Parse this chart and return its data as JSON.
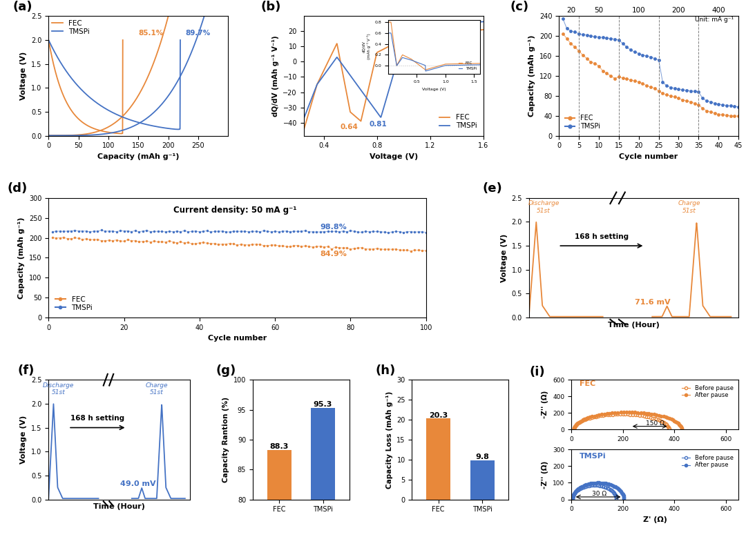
{
  "orange_color": "#E8883A",
  "blue_color": "#4472C4",
  "panel_a": {
    "xlim": [
      0,
      300
    ],
    "ylim": [
      0,
      2.5
    ],
    "xlabel": "Capacity (mAh g⁻¹)",
    "ylabel": "Voltage (V)",
    "xticks": [
      0,
      50,
      100,
      150,
      200,
      250
    ],
    "yticks": [
      0.0,
      0.5,
      1.0,
      1.5,
      2.0,
      2.5
    ]
  },
  "panel_b": {
    "xlabel": "Voltage (V)",
    "ylabel": "dQ/dV (mAh g⁻¹ V⁻¹)",
    "xlim": [
      0.25,
      1.6
    ],
    "xticks": [
      0.4,
      0.8,
      1.2,
      1.6
    ]
  },
  "panel_c": {
    "fec_cycles": [
      1,
      2,
      3,
      4,
      5,
      6,
      7,
      8,
      9,
      10,
      11,
      12,
      13,
      14,
      15,
      16,
      17,
      18,
      19,
      20,
      21,
      22,
      23,
      24,
      25,
      26,
      27,
      28,
      29,
      30,
      31,
      32,
      33,
      34,
      35,
      36,
      37,
      38,
      39,
      40,
      41,
      42,
      43,
      44,
      45
    ],
    "fec_cap": [
      205,
      195,
      185,
      178,
      170,
      162,
      155,
      148,
      145,
      140,
      130,
      125,
      120,
      115,
      118,
      116,
      114,
      112,
      110,
      108,
      105,
      100,
      98,
      95,
      90,
      85,
      82,
      80,
      78,
      75,
      72,
      70,
      68,
      65,
      62,
      55,
      50,
      48,
      45,
      43,
      42,
      41,
      40,
      40,
      39
    ],
    "tmspi_cycles": [
      1,
      2,
      3,
      4,
      5,
      6,
      7,
      8,
      9,
      10,
      11,
      12,
      13,
      14,
      15,
      16,
      17,
      18,
      19,
      20,
      21,
      22,
      23,
      24,
      25,
      26,
      27,
      28,
      29,
      30,
      31,
      32,
      33,
      34,
      35,
      36,
      37,
      38,
      39,
      40,
      41,
      42,
      43,
      44,
      45
    ],
    "tmspi_cap": [
      235,
      215,
      210,
      208,
      205,
      203,
      202,
      200,
      199,
      198,
      197,
      196,
      195,
      194,
      192,
      185,
      178,
      172,
      168,
      165,
      162,
      160,
      158,
      155,
      152,
      108,
      100,
      97,
      95,
      93,
      92,
      91,
      90,
      89,
      88,
      75,
      70,
      68,
      65,
      63,
      62,
      61,
      60,
      59,
      58
    ],
    "xlim": [
      0,
      45
    ],
    "ylim": [
      0,
      240
    ],
    "xlabel": "Cycle number",
    "ylabel": "Capacity (mAh g⁻¹)",
    "rate_labels": [
      "20",
      "50",
      "100",
      "200",
      "400"
    ],
    "rate_x": [
      3,
      10,
      20,
      30,
      40
    ],
    "vline_x": [
      5,
      15,
      25,
      35
    ],
    "unit_text": "Unit: mA g⁻¹",
    "xticks": [
      0,
      5,
      10,
      15,
      20,
      25,
      30,
      35,
      40,
      45
    ],
    "yticks": [
      0,
      40,
      80,
      120,
      160,
      200,
      240
    ]
  },
  "panel_d": {
    "xlim": [
      0,
      100
    ],
    "ylim": [
      0,
      300
    ],
    "xlabel": "Cycle number",
    "ylabel": "Capacity (mAh g⁻¹)",
    "title_text": "Current density: 50 mA g⁻¹",
    "yticks": [
      0,
      50,
      100,
      150,
      200,
      250,
      300
    ],
    "xticks": [
      0,
      20,
      40,
      60,
      80,
      100
    ]
  },
  "panel_g": {
    "categories": [
      "FEC",
      "TMSPi"
    ],
    "values": [
      88.3,
      95.3
    ],
    "colors": [
      "#E8883A",
      "#4472C4"
    ],
    "ylabel": "Capacity Rantion (%)",
    "ylim": [
      80,
      100
    ],
    "yticks": [
      80,
      85,
      90,
      95,
      100
    ],
    "bar_labels": [
      "88.3",
      "95.3"
    ]
  },
  "panel_h": {
    "categories": [
      "FEC",
      "TMSPi"
    ],
    "values": [
      20.3,
      9.8
    ],
    "colors": [
      "#E8883A",
      "#4472C4"
    ],
    "ylabel": "Capacity Loss (mAh g⁻¹)",
    "ylim": [
      0,
      30
    ],
    "yticks": [
      0,
      5,
      10,
      15,
      20,
      25,
      30
    ],
    "bar_labels": [
      "20.3",
      "9.8"
    ]
  },
  "panel_i": {
    "xlabel": "Z' (Ω)",
    "ylabel": "-Z'' (Ω)",
    "fec_title": "FEC",
    "tmspi_title": "TMSPi",
    "fec_annot": "150 Ω",
    "tmspi_annot": "30 Ω"
  }
}
